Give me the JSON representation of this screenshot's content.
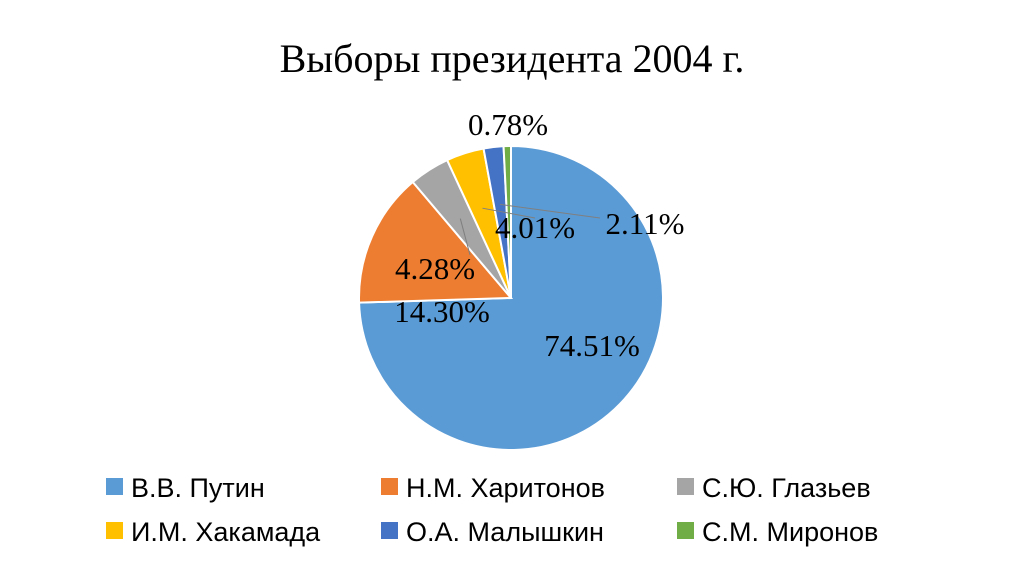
{
  "chart_data": {
    "type": "pie",
    "title": "Выборы президента 2004 г.",
    "categories": [
      "В.В. Путин",
      "Н.М. Харитонов",
      "С.Ю. Глазьев",
      "И.М. Хакамада",
      "О.А. Малышкин",
      "С.М. Миронов"
    ],
    "values": [
      74.51,
      14.3,
      4.28,
      4.01,
      2.11,
      0.78
    ],
    "labels": [
      "74.51%",
      "14.30%",
      "4.28%",
      "4.01%",
      "2.11%",
      "0.78%"
    ],
    "colors": [
      "#5B9BD5",
      "#ED7D31",
      "#A5A5A5",
      "#FFC000",
      "#4472C4",
      "#70AD47"
    ],
    "legend_position": "bottom"
  }
}
